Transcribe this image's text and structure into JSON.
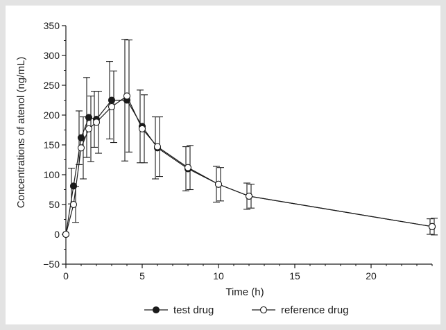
{
  "colors": {
    "background": "#e3e3e3",
    "panel": "#ffffff",
    "ink": "#1a1a1a"
  },
  "chart_data": {
    "type": "line",
    "title": "",
    "xlabel": "Time (h)",
    "ylabel": "Concentrations of atenol (ng/mL)",
    "xlim": [
      0,
      24
    ],
    "ylim": [
      -50,
      350
    ],
    "xticks": [
      0,
      5,
      10,
      15,
      20
    ],
    "yticks": [
      -50,
      0,
      50,
      100,
      150,
      200,
      250,
      300,
      350
    ],
    "grid": false,
    "legend_position": "bottom",
    "x": [
      0,
      0.5,
      1,
      1.5,
      2,
      3,
      4,
      5,
      6,
      8,
      10,
      12,
      24
    ],
    "series": [
      {
        "name": "test drug",
        "marker": "filled-circle",
        "values": [
          0,
          81,
          162,
          196,
          193,
          225,
          225,
          181,
          145,
          110,
          84,
          64,
          13
        ],
        "error": [
          0,
          30,
          45,
          67,
          47,
          65,
          102,
          61,
          52,
          37,
          30,
          22,
          13
        ]
      },
      {
        "name": "reference drug",
        "marker": "open-circle",
        "values": [
          0,
          50,
          145,
          177,
          188,
          214,
          232,
          177,
          147,
          112,
          84,
          64,
          13
        ],
        "error": [
          0,
          30,
          52,
          55,
          52,
          60,
          94,
          57,
          50,
          37,
          28,
          20,
          14
        ]
      }
    ]
  }
}
